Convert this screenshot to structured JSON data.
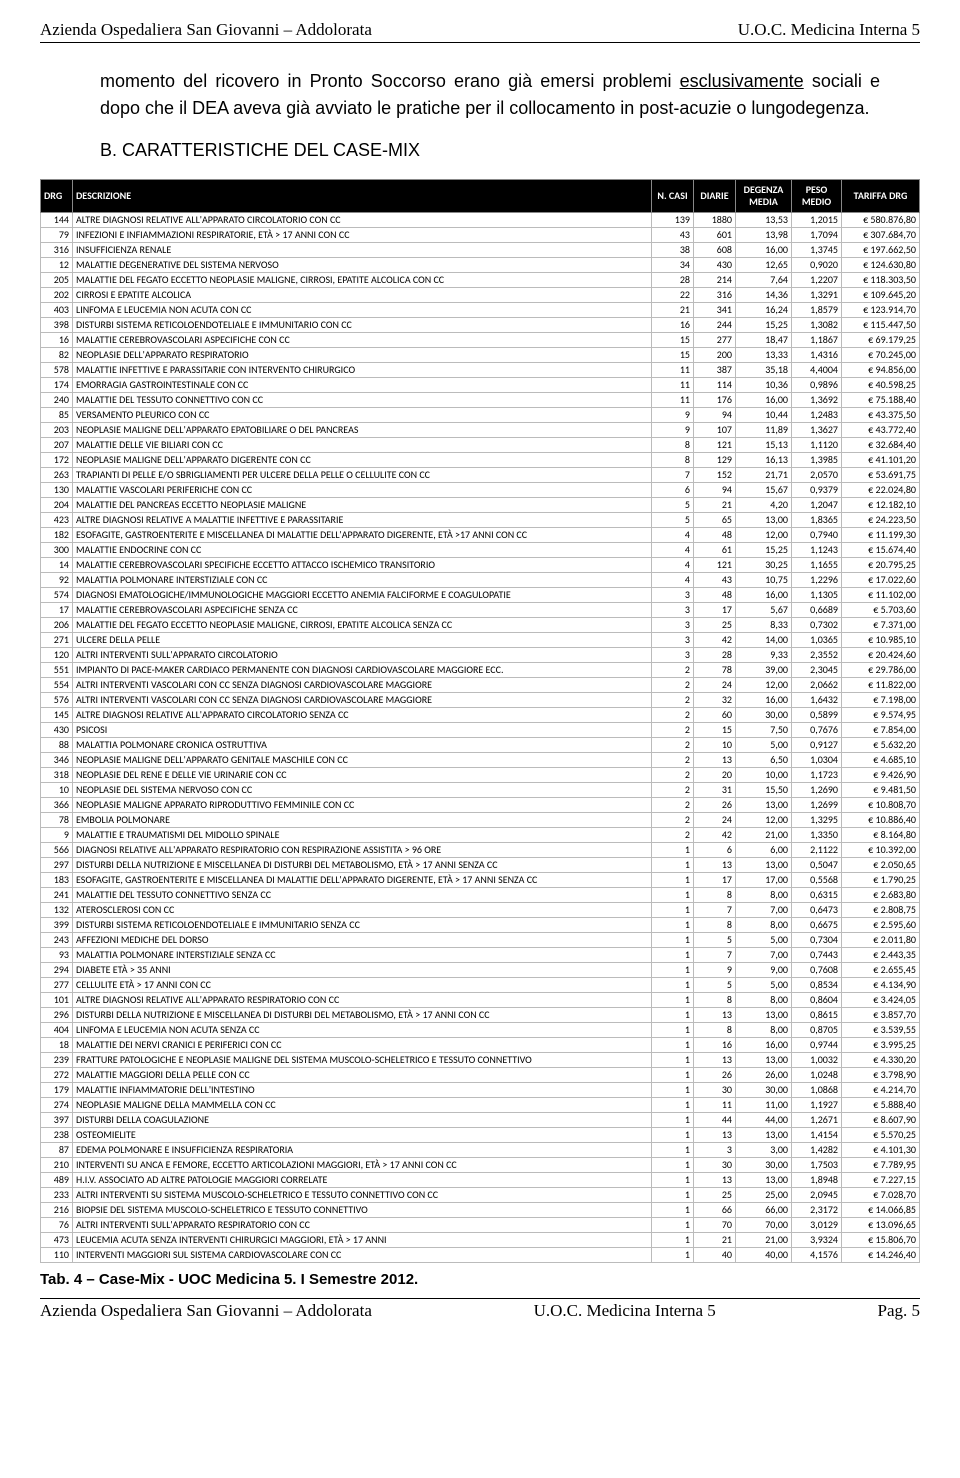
{
  "header": {
    "left": "Azienda Ospedaliera San Giovanni – Addolorata",
    "right": "U.O.C. Medicina Interna 5"
  },
  "paragraph_pre": "momento del ricovero in Pronto Soccorso erano già emersi problemi ",
  "paragraph_underlined": "esclusivamente",
  "paragraph_post": " sociali e dopo che il DEA aveva già avviato le pratiche per il collocamento in post-acuzie o lungodegenza.",
  "section_title": "B.  CARATTERISTICHE DEL CASE-MIX",
  "table": {
    "columns": [
      "DRG",
      "DESCRIZIONE",
      "N. CASI",
      "DIARIE",
      "DEGENZA MEDIA",
      "PESO MEDIO",
      "TARIFFA DRG"
    ],
    "rows": [
      [
        "144",
        "ALTRE DIAGNOSI RELATIVE ALL'APPARATO CIRCOLATORIO CON CC",
        "139",
        "1880",
        "13,53",
        "1,2015",
        "€ 580.876,80"
      ],
      [
        "79",
        "INFEZIONI E INFIAMMAZIONI RESPIRATORIE, ETÀ > 17 ANNI CON CC",
        "43",
        "601",
        "13,98",
        "1,7094",
        "€ 307.684,70"
      ],
      [
        "316",
        "INSUFFICIENZA RENALE",
        "38",
        "608",
        "16,00",
        "1,3745",
        "€ 197.662,50"
      ],
      [
        "12",
        "MALATTIE DEGENERATIVE DEL SISTEMA NERVOSO",
        "34",
        "430",
        "12,65",
        "0,9020",
        "€ 124.630,80"
      ],
      [
        "205",
        "MALATTIE DEL FEGATO ECCETTO NEOPLASIE MALIGNE, CIRROSI, EPATITE ALCOLICA CON CC",
        "28",
        "214",
        "7,64",
        "1,2207",
        "€ 118.303,50"
      ],
      [
        "202",
        "CIRROSI E EPATITE ALCOLICA",
        "22",
        "316",
        "14,36",
        "1,3291",
        "€ 109.645,20"
      ],
      [
        "403",
        "LINFOMA E LEUCEMIA NON ACUTA CON CC",
        "21",
        "341",
        "16,24",
        "1,8579",
        "€ 123.914,70"
      ],
      [
        "398",
        "DISTURBI SISTEMA RETICOLOENDOTELIALE E IMMUNITARIO CON CC",
        "16",
        "244",
        "15,25",
        "1,3082",
        "€ 115.447,50"
      ],
      [
        "16",
        "MALATTIE CEREBROVASCOLARI ASPECIFICHE CON CC",
        "15",
        "277",
        "18,47",
        "1,1867",
        "€ 69.179,25"
      ],
      [
        "82",
        "NEOPLASIE DELL'APPARATO RESPIRATORIO",
        "15",
        "200",
        "13,33",
        "1,4316",
        "€ 70.245,00"
      ],
      [
        "578",
        "MALATTIE INFETTIVE E PARASSITARIE CON INTERVENTO CHIRURGICO",
        "11",
        "387",
        "35,18",
        "4,4004",
        "€ 94.856,00"
      ],
      [
        "174",
        "EMORRAGIA GASTROINTESTINALE CON CC",
        "11",
        "114",
        "10,36",
        "0,9896",
        "€ 40.598,25"
      ],
      [
        "240",
        "MALATTIE DEL TESSUTO CONNETTIVO CON CC",
        "11",
        "176",
        "16,00",
        "1,3692",
        "€ 75.188,40"
      ],
      [
        "85",
        "VERSAMENTO PLEURICO CON CC",
        "9",
        "94",
        "10,44",
        "1,2483",
        "€ 43.375,50"
      ],
      [
        "203",
        "NEOPLASIE MALIGNE DELL'APPARATO EPATOBILIARE O DEL PANCREAS",
        "9",
        "107",
        "11,89",
        "1,3627",
        "€ 43.772,40"
      ],
      [
        "207",
        "MALATTIE DELLE VIE BILIARI CON CC",
        "8",
        "121",
        "15,13",
        "1,1120",
        "€ 32.684,40"
      ],
      [
        "172",
        "NEOPLASIE MALIGNE DELL'APPARATO DIGERENTE CON CC",
        "8",
        "129",
        "16,13",
        "1,3985",
        "€ 41.101,20"
      ],
      [
        "263",
        "TRAPIANTI DI PELLE E/O SBRIGLIAMENTI PER ULCERE DELLA PELLE O CELLULITE CON CC",
        "7",
        "152",
        "21,71",
        "2,0570",
        "€ 53.691,75"
      ],
      [
        "130",
        "MALATTIE VASCOLARI PERIFERICHE CON CC",
        "6",
        "94",
        "15,67",
        "0,9379",
        "€ 22.024,80"
      ],
      [
        "204",
        "MALATTIE DEL PANCREAS ECCETTO NEOPLASIE MALIGNE",
        "5",
        "21",
        "4,20",
        "1,2047",
        "€ 12.182,10"
      ],
      [
        "423",
        "ALTRE DIAGNOSI RELATIVE A MALATTIE INFETTIVE E PARASSITARIE",
        "5",
        "65",
        "13,00",
        "1,8365",
        "€ 24.223,50"
      ],
      [
        "182",
        "ESOFAGITE, GASTROENTERITE E MISCELLANEA DI MALATTIE DELL'APPARATO DIGERENTE, ETÀ >17 ANNI CON CC",
        "4",
        "48",
        "12,00",
        "0,7940",
        "€ 11.199,30"
      ],
      [
        "300",
        "MALATTIE ENDOCRINE CON CC",
        "4",
        "61",
        "15,25",
        "1,1243",
        "€ 15.674,40"
      ],
      [
        "14",
        "MALATTIE CEREBROVASCOLARI SPECIFICHE ECCETTO ATTACCO ISCHEMICO TRANSITORIO",
        "4",
        "121",
        "30,25",
        "1,1655",
        "€ 20.795,25"
      ],
      [
        "92",
        "MALATTIA POLMONARE INTERSTIZIALE CON CC",
        "4",
        "43",
        "10,75",
        "1,2296",
        "€ 17.022,60"
      ],
      [
        "574",
        "DIAGNOSI EMATOLOGICHE/IMMUNOLOGICHE MAGGIORI ECCETTO ANEMIA FALCIFORME E COAGULOPATIE",
        "3",
        "48",
        "16,00",
        "1,1305",
        "€ 11.102,00"
      ],
      [
        "17",
        "MALATTIE CEREBROVASCOLARI ASPECIFICHE SENZA CC",
        "3",
        "17",
        "5,67",
        "0,6689",
        "€ 5.703,60"
      ],
      [
        "206",
        "MALATTIE DEL FEGATO ECCETTO NEOPLASIE MALIGNE, CIRROSI, EPATITE ALCOLICA SENZA CC",
        "3",
        "25",
        "8,33",
        "0,7302",
        "€ 7.371,00"
      ],
      [
        "271",
        "ULCERE DELLA PELLE",
        "3",
        "42",
        "14,00",
        "1,0365",
        "€ 10.985,10"
      ],
      [
        "120",
        "ALTRI INTERVENTI SULL'APPARATO CIRCOLATORIO",
        "3",
        "28",
        "9,33",
        "2,3552",
        "€ 20.424,60"
      ],
      [
        "551",
        "IMPIANTO DI PACE-MAKER CARDIACO PERMANENTE CON DIAGNOSI CARDIOVASCOLARE MAGGIORE ECC.",
        "2",
        "78",
        "39,00",
        "2,3045",
        "€ 29.786,00"
      ],
      [
        "554",
        "ALTRI INTERVENTI VASCOLARI CON CC SENZA DIAGNOSI CARDIOVASCOLARE MAGGIORE",
        "2",
        "24",
        "12,00",
        "2,0662",
        "€ 11.822,00"
      ],
      [
        "576",
        "ALTRI INTERVENTI VASCOLARI CON CC SENZA DIAGNOSI CARDIOVASCOLARE MAGGIORE",
        "2",
        "32",
        "16,00",
        "1,6432",
        "€ 7.198,00"
      ],
      [
        "145",
        "ALTRE DIAGNOSI RELATIVE ALL'APPARATO CIRCOLATORIO SENZA CC",
        "2",
        "60",
        "30,00",
        "0,5899",
        "€ 9.574,95"
      ],
      [
        "430",
        "PSICOSI",
        "2",
        "15",
        "7,50",
        "0,7676",
        "€ 7.854,00"
      ],
      [
        "88",
        "MALATTIA POLMONARE CRONICA OSTRUTTIVA",
        "2",
        "10",
        "5,00",
        "0,9127",
        "€ 5.632,20"
      ],
      [
        "346",
        "NEOPLASIE MALIGNE DELL'APPARATO GENITALE MASCHILE CON CC",
        "2",
        "13",
        "6,50",
        "1,0304",
        "€ 4.685,10"
      ],
      [
        "318",
        "NEOPLASIE DEL RENE E DELLE VIE URINARIE CON CC",
        "2",
        "20",
        "10,00",
        "1,1723",
        "€ 9.426,90"
      ],
      [
        "10",
        "NEOPLASIE DEL SISTEMA NERVOSO CON CC",
        "2",
        "31",
        "15,50",
        "1,2690",
        "€ 9.481,50"
      ],
      [
        "366",
        "NEOPLASIE MALIGNE APPARATO RIPRODUTTIVO FEMMINILE CON CC",
        "2",
        "26",
        "13,00",
        "1,2699",
        "€ 10.808,70"
      ],
      [
        "78",
        "EMBOLIA POLMONARE",
        "2",
        "24",
        "12,00",
        "1,3295",
        "€ 10.886,40"
      ],
      [
        "9",
        "MALATTIE E TRAUMATISMI DEL MIDOLLO SPINALE",
        "2",
        "42",
        "21,00",
        "1,3350",
        "€ 8.164,80"
      ],
      [
        "566",
        "DIAGNOSI RELATIVE ALL'APPARATO RESPIRATORIO CON RESPIRAZIONE ASSISTITA > 96 ORE",
        "1",
        "6",
        "6,00",
        "2,1122",
        "€ 10.392,00"
      ],
      [
        "297",
        "DISTURBI DELLA NUTRIZIONE E MISCELLANEA DI DISTURBI DEL METABOLISMO, ETÀ > 17 ANNI SENZA CC",
        "1",
        "13",
        "13,00",
        "0,5047",
        "€ 2.050,65"
      ],
      [
        "183",
        "ESOFAGITE, GASTROENTERITE E MISCELLANEA DI MALATTIE DELL'APPARATO DIGERENTE, ETÀ > 17 ANNI SENZA CC",
        "1",
        "17",
        "17,00",
        "0,5568",
        "€ 1.790,25"
      ],
      [
        "241",
        "MALATTIE DEL TESSUTO CONNETTIVO SENZA CC",
        "1",
        "8",
        "8,00",
        "0,6315",
        "€ 2.683,80"
      ],
      [
        "132",
        "ATEROSCLEROSI CON CC",
        "1",
        "7",
        "7,00",
        "0,6473",
        "€ 2.808,75"
      ],
      [
        "399",
        "DISTURBI SISTEMA RETICOLOENDOTELIALE E IMMUNITARIO SENZA CC",
        "1",
        "8",
        "8,00",
        "0,6675",
        "€ 2.595,60"
      ],
      [
        "243",
        "AFFEZIONI MEDICHE DEL DORSO",
        "1",
        "5",
        "5,00",
        "0,7304",
        "€ 2.011,80"
      ],
      [
        "93",
        "MALATTIA POLMONARE INTERSTIZIALE SENZA CC",
        "1",
        "7",
        "7,00",
        "0,7443",
        "€ 2.443,35"
      ],
      [
        "294",
        "DIABETE ETÀ > 35 ANNI",
        "1",
        "9",
        "9,00",
        "0,7608",
        "€ 2.655,45"
      ],
      [
        "277",
        "CELLULITE ETÀ > 17 ANNI CON CC",
        "1",
        "5",
        "5,00",
        "0,8534",
        "€ 4.134,90"
      ],
      [
        "101",
        "ALTRE DIAGNOSI RELATIVE ALL'APPARATO RESPIRATORIO CON CC",
        "1",
        "8",
        "8,00",
        "0,8604",
        "€ 3.424,05"
      ],
      [
        "296",
        "DISTURBI DELLA NUTRIZIONE E MISCELLANEA DI DISTURBI DEL METABOLISMO, ETÀ > 17 ANNI CON CC",
        "1",
        "13",
        "13,00",
        "0,8615",
        "€ 3.857,70"
      ],
      [
        "404",
        "LINFOMA E LEUCEMIA NON ACUTA SENZA CC",
        "1",
        "8",
        "8,00",
        "0,8705",
        "€ 3.539,55"
      ],
      [
        "18",
        "MALATTIE DEI NERVI CRANICI E PERIFERICI CON CC",
        "1",
        "16",
        "16,00",
        "0,9744",
        "€ 3.995,25"
      ],
      [
        "239",
        "FRATTURE PATOLOGICHE E NEOPLASIE MALIGNE DEL SISTEMA MUSCOLO-SCHELETRICO E TESSUTO CONNETTIVO",
        "1",
        "13",
        "13,00",
        "1,0032",
        "€ 4.330,20"
      ],
      [
        "272",
        "MALATTIE MAGGIORI DELLA PELLE CON CC",
        "1",
        "26",
        "26,00",
        "1,0248",
        "€ 3.798,90"
      ],
      [
        "179",
        "MALATTIE INFIAMMATORIE DELL'INTESTINO",
        "1",
        "30",
        "30,00",
        "1,0868",
        "€ 4.214,70"
      ],
      [
        "274",
        "NEOPLASIE MALIGNE DELLA MAMMELLA CON CC",
        "1",
        "11",
        "11,00",
        "1,1927",
        "€ 5.888,40"
      ],
      [
        "397",
        "DISTURBI DELLA COAGULAZIONE",
        "1",
        "44",
        "44,00",
        "1,2671",
        "€ 8.607,90"
      ],
      [
        "238",
        "OSTEOMIELITE",
        "1",
        "13",
        "13,00",
        "1,4154",
        "€ 5.570,25"
      ],
      [
        "87",
        "EDEMA POLMONARE E INSUFFICIENZA RESPIRATORIA",
        "1",
        "3",
        "3,00",
        "1,4282",
        "€ 4.101,30"
      ],
      [
        "210",
        "INTERVENTI SU ANCA E FEMORE, ECCETTO ARTICOLAZIONI MAGGIORI, ETÀ > 17 ANNI CON CC",
        "1",
        "30",
        "30,00",
        "1,7503",
        "€ 7.789,95"
      ],
      [
        "489",
        "H.I.V. ASSOCIATO AD ALTRE PATOLOGIE MAGGIORI CORRELATE",
        "1",
        "13",
        "13,00",
        "1,8948",
        "€ 7.227,15"
      ],
      [
        "233",
        "ALTRI INTERVENTI SU SISTEMA MUSCOLO-SCHELETRICO E TESSUTO CONNETTIVO CON CC",
        "1",
        "25",
        "25,00",
        "2,0945",
        "€ 7.028,70"
      ],
      [
        "216",
        "BIOPSIE DEL SISTEMA MUSCOLO-SCHELETRICO E TESSUTO CONNETTIVO",
        "1",
        "66",
        "66,00",
        "2,3172",
        "€ 14.066,85"
      ],
      [
        "76",
        "ALTRI INTERVENTI SULL'APPARATO RESPIRATORIO CON CC",
        "1",
        "70",
        "70,00",
        "3,0129",
        "€ 13.096,65"
      ],
      [
        "473",
        "LEUCEMIA ACUTA SENZA INTERVENTI CHIRURGICI MAGGIORI, ETÀ > 17 ANNI",
        "1",
        "21",
        "21,00",
        "3,9324",
        "€ 15.806,70"
      ],
      [
        "110",
        "INTERVENTI MAGGIORI SUL SISTEMA CARDIOVASCOLARE CON CC",
        "1",
        "40",
        "40,00",
        "4,1576",
        "€ 14.246,40"
      ]
    ]
  },
  "table_caption": "Tab. 4 – Case-Mix - UOC Medicina 5. I Semestre 2012.",
  "footer": {
    "left": "Azienda Ospedaliera San Giovanni – Addolorata",
    "center": "U.O.C. Medicina Interna 5",
    "right": "Pag.  5"
  }
}
